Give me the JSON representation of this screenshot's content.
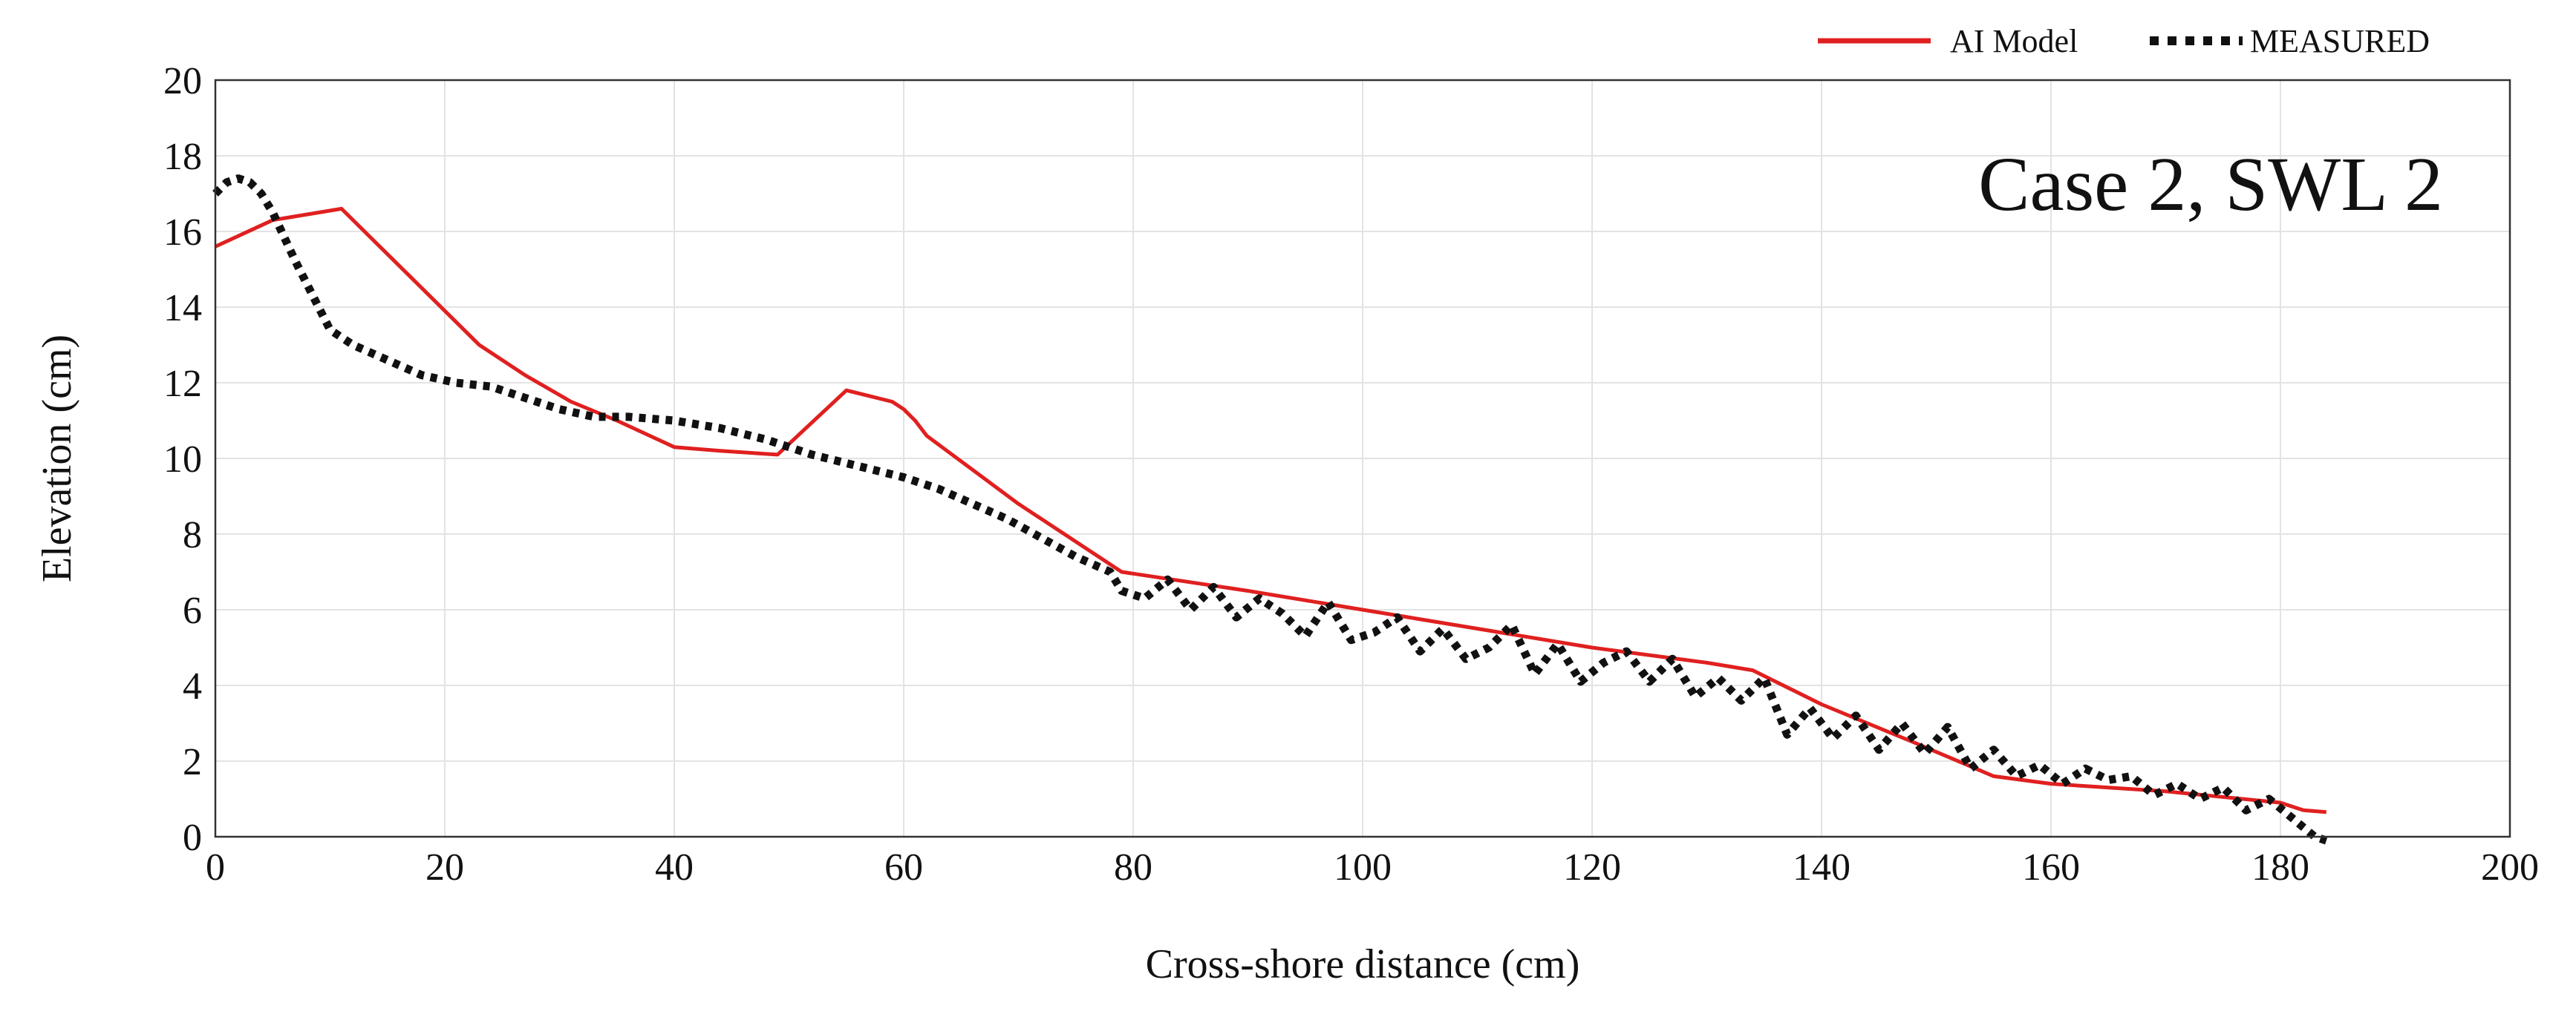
{
  "chart_data": {
    "type": "line",
    "title": "",
    "annotation": "Case 2, SWL 2",
    "xlabel": "Cross-shore distance (cm)",
    "ylabel": "Elevation (cm)",
    "xlim": [
      0,
      200
    ],
    "ylim": [
      0,
      20
    ],
    "xticks": [
      "0",
      "20",
      "40",
      "60",
      "80",
      "100",
      "120",
      "140",
      "160",
      "180",
      "200"
    ],
    "yticks": [
      "0",
      "2",
      "4",
      "6",
      "8",
      "10",
      "12",
      "14",
      "16",
      "18",
      "20"
    ],
    "grid": true,
    "legend_position": "top-right, outside plot",
    "series": [
      {
        "name": "AI Model",
        "style": "solid",
        "color": "#e02020",
        "x": [
          0,
          5,
          9,
          11,
          17,
          23,
          27,
          31,
          35,
          40,
          44,
          49,
          55,
          59,
          60,
          61,
          62,
          70,
          79,
          90,
          100,
          110,
          120,
          130,
          134,
          140,
          148,
          155,
          160,
          170,
          180,
          182,
          184
        ],
        "y": [
          15.6,
          16.3,
          16.5,
          16.6,
          14.8,
          13.0,
          12.2,
          11.5,
          11.0,
          10.3,
          10.2,
          10.1,
          11.8,
          11.5,
          11.3,
          11.0,
          10.6,
          8.8,
          7.0,
          6.5,
          6.0,
          5.5,
          5.0,
          4.6,
          4.4,
          3.5,
          2.5,
          1.6,
          1.4,
          1.2,
          0.9,
          0.7,
          0.65
        ]
      },
      {
        "name": "MEASURED",
        "style": "dotted",
        "color": "#111111",
        "x": [
          0,
          1,
          2,
          3,
          4,
          5,
          7,
          9,
          10,
          12,
          15,
          18,
          21,
          24,
          27,
          30,
          33,
          36,
          40,
          44,
          48,
          52,
          56,
          60,
          63,
          66,
          69,
          72,
          75,
          78,
          79,
          81,
          83,
          85,
          87,
          89,
          91,
          93,
          95,
          97,
          99,
          101,
          103,
          105,
          107,
          109,
          111,
          113,
          115,
          117,
          119,
          121,
          123,
          125,
          127,
          129,
          131,
          133,
          135,
          137,
          139,
          141,
          143,
          145,
          147,
          149,
          151,
          153,
          155,
          157,
          159,
          161,
          163,
          165,
          167,
          169,
          171,
          173,
          175,
          177,
          179,
          181,
          183,
          184
        ],
        "y": [
          17.0,
          17.3,
          17.4,
          17.3,
          17.0,
          16.5,
          15.2,
          14.0,
          13.4,
          13.0,
          12.6,
          12.2,
          12.0,
          11.9,
          11.6,
          11.3,
          11.1,
          11.1,
          11.0,
          10.8,
          10.5,
          10.1,
          9.8,
          9.5,
          9.2,
          8.8,
          8.4,
          7.9,
          7.4,
          7.0,
          6.5,
          6.3,
          6.8,
          6.0,
          6.6,
          5.8,
          6.3,
          5.9,
          5.3,
          6.2,
          5.2,
          5.4,
          5.8,
          4.9,
          5.5,
          4.7,
          5.0,
          5.6,
          4.3,
          5.1,
          4.1,
          4.6,
          4.9,
          4.1,
          4.7,
          3.7,
          4.2,
          3.6,
          4.2,
          2.7,
          3.4,
          2.6,
          3.2,
          2.3,
          3.0,
          2.2,
          2.9,
          1.8,
          2.3,
          1.6,
          1.9,
          1.4,
          1.8,
          1.5,
          1.6,
          1.1,
          1.4,
          1.0,
          1.3,
          0.7,
          1.0,
          0.5,
          0.0,
          -0.1
        ]
      }
    ]
  }
}
